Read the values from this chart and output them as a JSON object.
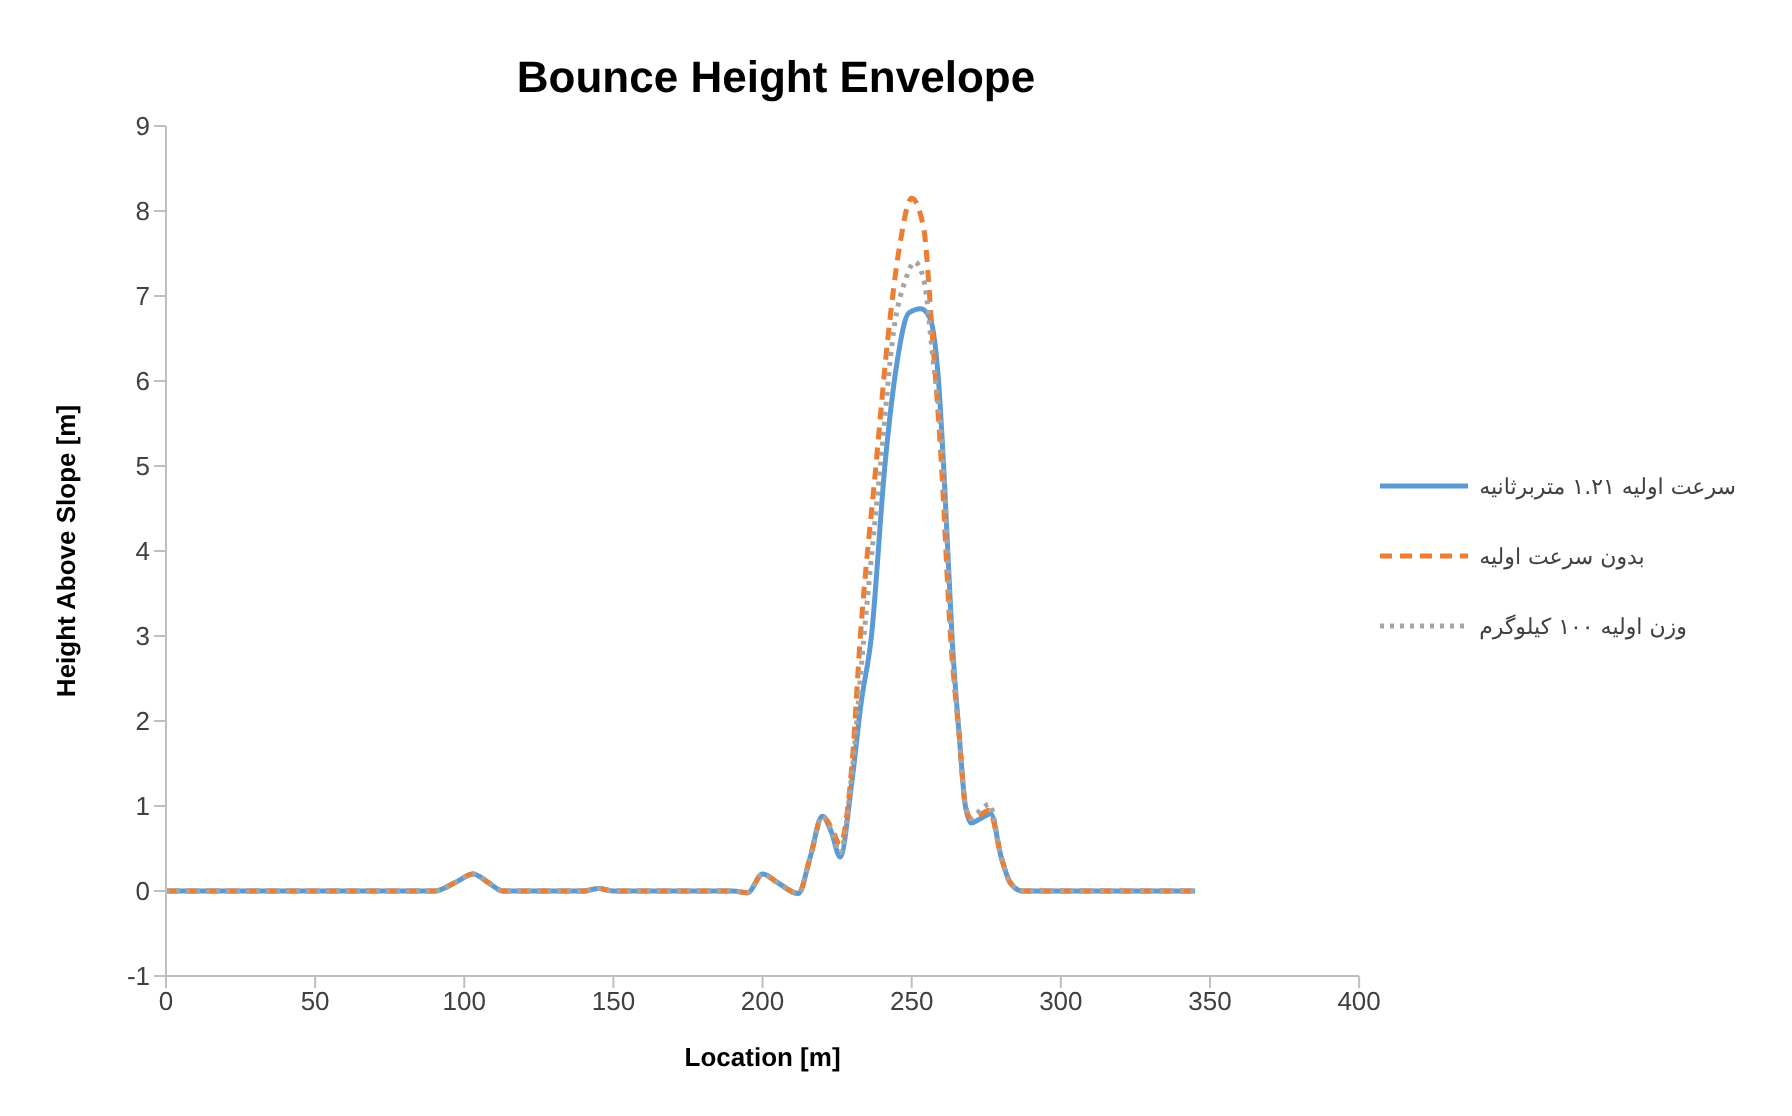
{
  "chart_data": {
    "type": "line",
    "title": "Bounce Height Envelope",
    "xlabel": "Location [m]",
    "ylabel": "Height Above Slope [m]",
    "xlim": [
      0,
      400
    ],
    "xticks": [
      0,
      50,
      100,
      150,
      200,
      250,
      300,
      350,
      400
    ],
    "ylim": [
      -1,
      9
    ],
    "yticks": [
      -1,
      0,
      1,
      2,
      3,
      4,
      5,
      6,
      7,
      8,
      9
    ],
    "grid": false,
    "legend": "right",
    "marker": "none",
    "series": [
      {
        "name": "سرعت اولیه ۱.۲۱ متربرثانیه",
        "color": "#5b9bd5",
        "line_style": "solid",
        "x": [
          0,
          90,
          97,
          103,
          108,
          113,
          140,
          145,
          150,
          190,
          195,
          200,
          205,
          212,
          216,
          220,
          223,
          226,
          230,
          233,
          236.5,
          241,
          245,
          249,
          253,
          256,
          259,
          261,
          263.5,
          266,
          268,
          270,
          273,
          276.5,
          280,
          283,
          287,
          295,
          300,
          345
        ],
        "values": [
          0,
          0,
          0.1,
          0.2,
          0.1,
          0,
          0,
          0.03,
          0,
          0,
          -0.02,
          0.2,
          0.1,
          -0.03,
          0.4,
          0.88,
          0.7,
          0.4,
          1.3,
          2.2,
          3,
          5,
          6.2,
          6.8,
          6.85,
          6.75,
          6,
          4.8,
          3,
          1.8,
          1,
          0.8,
          0.85,
          0.91,
          0.4,
          0.1,
          0,
          0,
          0,
          0
        ]
      },
      {
        "name": "بدون سرعت اولیه",
        "color": "#ed7d31",
        "line_style": "dashed",
        "x": [
          0,
          90,
          97,
          103,
          108,
          113,
          140,
          145,
          150,
          190,
          195,
          200,
          205,
          212,
          216,
          220,
          223,
          226,
          230,
          232.8,
          238,
          242,
          246,
          250,
          254,
          257,
          260,
          263,
          266,
          268,
          270,
          273,
          276,
          280,
          283,
          287,
          295,
          300,
          345
        ],
        "values": [
          0,
          0,
          0.1,
          0.2,
          0.1,
          0,
          0,
          0.03,
          0,
          0,
          -0.02,
          0.2,
          0.1,
          -0.03,
          0.4,
          0.88,
          0.75,
          0.55,
          1.5,
          3,
          5,
          6.5,
          7.6,
          8.15,
          7.8,
          6.5,
          5,
          3,
          1.8,
          1,
          0.85,
          0.9,
          0.95,
          0.4,
          0.1,
          0,
          0,
          0,
          0
        ]
      },
      {
        "name": "وزن اولیه ۱۰۰ کیلوگرم",
        "color": "#a5a5a5",
        "line_style": "dotted",
        "x": [
          0,
          90,
          97,
          103,
          108,
          113,
          140,
          145,
          150,
          190,
          195,
          200,
          205,
          212,
          216,
          220,
          223,
          226,
          230,
          234,
          239.5,
          244,
          248,
          251,
          254,
          257,
          260.6,
          263.3,
          266,
          268,
          270,
          273,
          276,
          280,
          283,
          287,
          295,
          300,
          345
        ],
        "values": [
          0,
          0,
          0.1,
          0.2,
          0.1,
          0,
          0,
          0.03,
          0,
          0,
          -0.02,
          0.2,
          0.1,
          -0.03,
          0.4,
          0.88,
          0.72,
          0.45,
          1.4,
          3,
          5,
          6.6,
          7.2,
          7.4,
          7.2,
          6.3,
          5,
          3,
          1.8,
          1,
          0.85,
          0.95,
          1.02,
          0.4,
          0.1,
          0,
          0,
          0,
          0
        ]
      }
    ]
  }
}
